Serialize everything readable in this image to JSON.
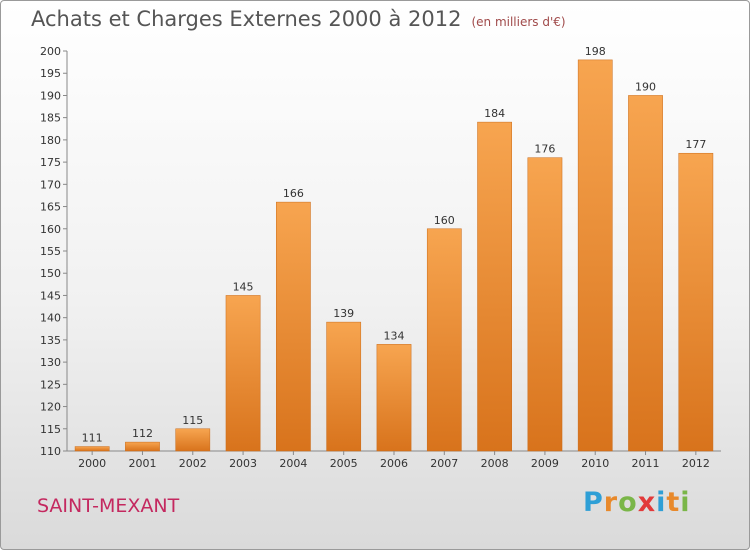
{
  "header": {
    "title": "Achats et Charges Externes 2000 à 2012",
    "unit": "(en milliers d'€)"
  },
  "footer": {
    "commune": "SAINT-MEXANT",
    "logo_letters": [
      "P",
      "r",
      "o",
      "x",
      "i",
      "t",
      "i"
    ],
    "logo_colors": [
      "#2e9fd6",
      "#e8892b",
      "#7ab648",
      "#e23a3a",
      "#2e9fd6",
      "#e8892b",
      "#7ab648"
    ]
  },
  "chart_data": {
    "type": "bar",
    "title": "Achats et Charges Externes 2000 à 2012",
    "subtitle": "(en milliers d'€)",
    "categories": [
      "2000",
      "2001",
      "2002",
      "2003",
      "2004",
      "2005",
      "2006",
      "2007",
      "2008",
      "2009",
      "2010",
      "2011",
      "2012"
    ],
    "values": [
      111,
      112,
      115,
      145,
      166,
      139,
      134,
      160,
      184,
      176,
      198,
      190,
      177
    ],
    "ylim": [
      110,
      200
    ],
    "yticks": [
      "110",
      "115",
      "120",
      "125",
      "130",
      "135",
      "140",
      "145",
      "150",
      "155",
      "160",
      "165",
      "170",
      "175",
      "180",
      "185",
      "190",
      "195",
      "200"
    ],
    "grid": false,
    "bar_color": "#f0923a",
    "legend": "none"
  }
}
